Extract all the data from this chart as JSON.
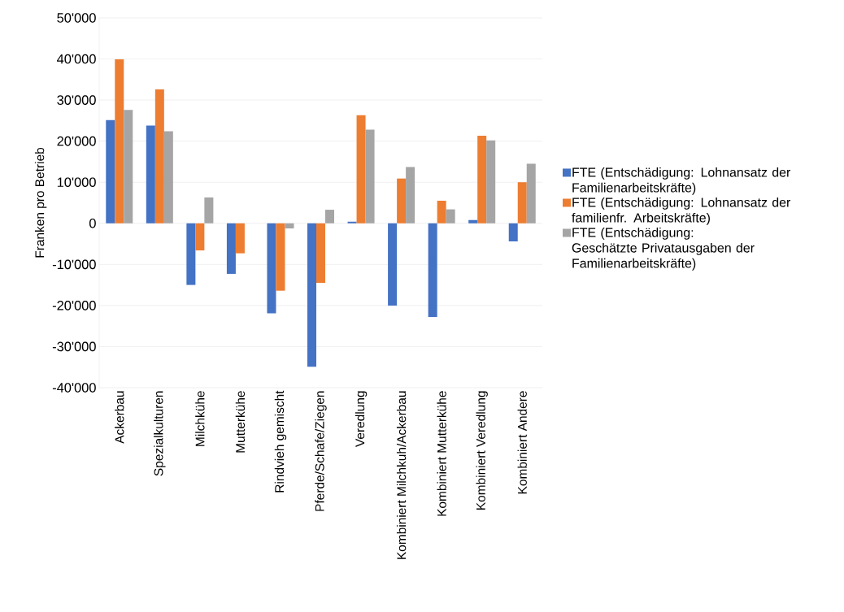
{
  "chart_data": {
    "type": "bar",
    "ylabel": "Franken pro Betrieb",
    "categories": [
      "Ackerbau",
      "Spezialkulturen",
      "Milchkühe",
      "Mutterkühe",
      "Rindvieh gemischt",
      "Pferde/Schafe/Ziegen",
      "Veredlung",
      "Kombiniert Milchkuh/Ackerbau",
      "Kombiniert Mutterkühe",
      "Kombiniert Veredlung",
      "Kombiniert Andere"
    ],
    "series": [
      {
        "name": "FTE (Entschädigung: Lohnansatz der Familienarbeitskräfte)",
        "color": "#4472c4",
        "values": [
          25100,
          23800,
          -15000,
          -12300,
          -21900,
          -34900,
          400,
          -20000,
          -22800,
          800,
          -4400
        ]
      },
      {
        "name": "FTE (Entschädigung: Lohnansatz der familienfr. Arbeitskräfte)",
        "color": "#ed7d31",
        "values": [
          39900,
          32600,
          -6600,
          -7300,
          -16400,
          -14500,
          26300,
          10900,
          5500,
          21300,
          10000
        ]
      },
      {
        "name": "FTE (Entschädigung: Geschätzte Privatausgaben der Familienarbeitskräfte)",
        "color": "#a5a5a5",
        "values": [
          27600,
          22400,
          6300,
          null,
          -1250,
          3300,
          22800,
          13700,
          3400,
          20200,
          14500
        ]
      }
    ],
    "ylim": [
      -40000,
      50000
    ],
    "yticks": [
      {
        "value": -40000,
        "label": "-40'000"
      },
      {
        "value": -30000,
        "label": "-30'000"
      },
      {
        "value": -20000,
        "label": "-20'000"
      },
      {
        "value": -10000,
        "label": "-10'000"
      },
      0,
      {
        "value": 10000,
        "label": "10'000"
      },
      {
        "value": 20000,
        "label": "20'000"
      },
      {
        "value": 30000,
        "label": "30'000"
      },
      {
        "value": 40000,
        "label": "40'000"
      },
      {
        "value": 50000,
        "label": "50'000"
      }
    ],
    "grid": "y",
    "legend": "right"
  }
}
